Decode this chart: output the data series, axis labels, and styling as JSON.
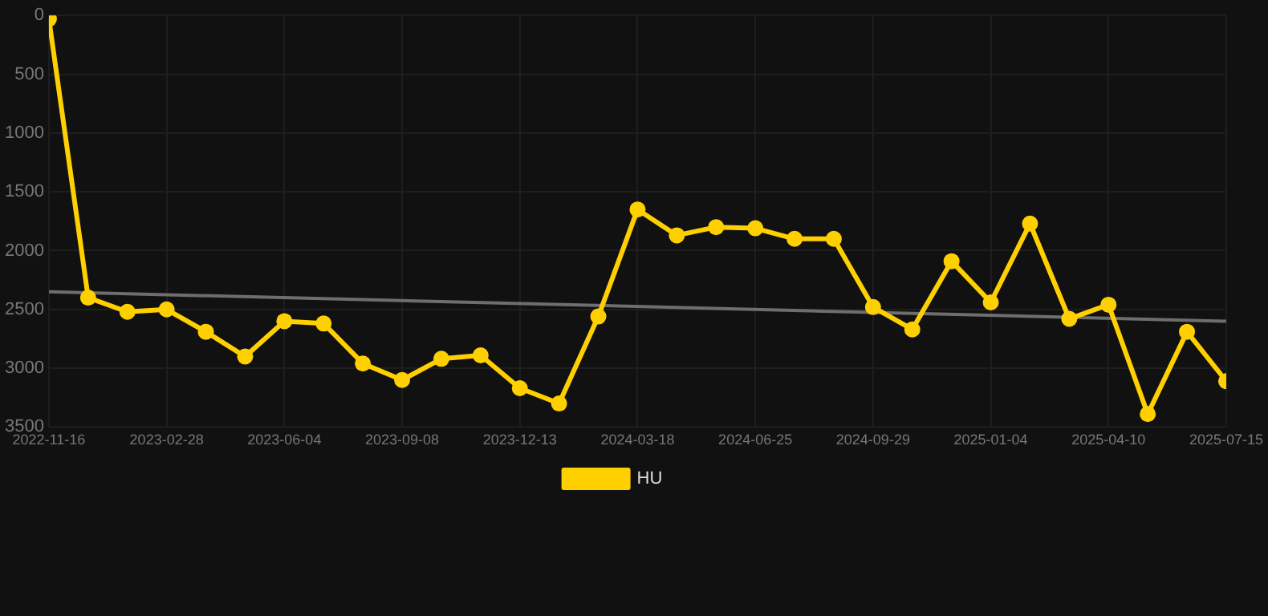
{
  "chart_data": {
    "type": "line",
    "categories": [
      "2022-11-16",
      null,
      null,
      "2023-02-28",
      null,
      null,
      "2023-06-04",
      null,
      null,
      "2023-09-08",
      null,
      null,
      "2023-12-13",
      null,
      null,
      "2024-03-18",
      null,
      null,
      "2024-06-25",
      null,
      null,
      "2024-09-29",
      null,
      null,
      "2025-01-04",
      null,
      null,
      "2025-04-10",
      null,
      null,
      "2025-07-15"
    ],
    "series": [
      {
        "name": "HU",
        "color": "#ffd000",
        "marker": "circle",
        "values": [
          30,
          2400,
          2520,
          2500,
          2690,
          2900,
          2600,
          2620,
          2960,
          3100,
          2920,
          2890,
          3170,
          3300,
          2560,
          1650,
          1870,
          1800,
          1810,
          1900,
          1900,
          2480,
          2670,
          2090,
          2440,
          1770,
          2580,
          2460,
          3390,
          2690,
          3110
        ]
      },
      {
        "type": "line",
        "color": "#6e6e6e",
        "marker": "none",
        "values": [
          2350,
          null,
          null,
          null,
          null,
          null,
          null,
          null,
          null,
          null,
          null,
          null,
          null,
          null,
          null,
          null,
          null,
          null,
          null,
          null,
          null,
          null,
          null,
          null,
          null,
          null,
          null,
          null,
          null,
          null,
          2600
        ]
      }
    ],
    "ylim": [
      3500,
      0
    ],
    "yticks": [
      0,
      500,
      1000,
      1500,
      2000,
      2500,
      3000,
      3500
    ],
    "grid": true,
    "legend": "bottom",
    "line_style": "solid"
  }
}
